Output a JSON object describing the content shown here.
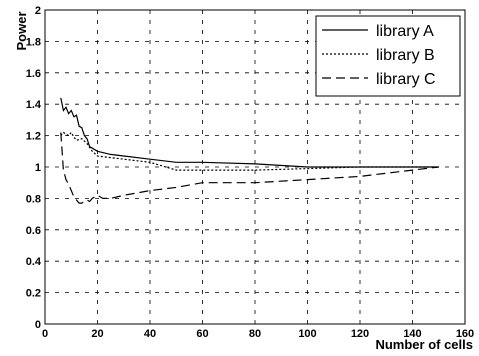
{
  "chart_data": {
    "type": "line",
    "xlabel": "Number of cells",
    "ylabel": "Power",
    "xlim": [
      0,
      160
    ],
    "ylim": [
      0,
      2
    ],
    "xticks": [
      0,
      20,
      40,
      60,
      80,
      100,
      120,
      140,
      160
    ],
    "yticks": [
      0,
      0.2,
      0.4,
      0.6,
      0.8,
      1,
      1.2,
      1.4,
      1.6,
      1.8,
      2
    ],
    "grid": true,
    "legend_position": "top-right",
    "series": [
      {
        "name": "library A",
        "style": "solid",
        "x": [
          6,
          7,
          8,
          9,
          10,
          11,
          12,
          13,
          14,
          15,
          16,
          17,
          18,
          20,
          25,
          30,
          40,
          50,
          60,
          80,
          100,
          120,
          140,
          150
        ],
        "y": [
          1.44,
          1.36,
          1.38,
          1.34,
          1.36,
          1.32,
          1.33,
          1.26,
          1.25,
          1.2,
          1.18,
          1.13,
          1.12,
          1.1,
          1.08,
          1.07,
          1.05,
          1.03,
          1.03,
          1.02,
          1.0,
          1.0,
          1.0,
          1.0
        ]
      },
      {
        "name": "library B",
        "style": "dotted",
        "x": [
          6,
          7,
          8,
          9,
          10,
          11,
          12,
          14,
          16,
          18,
          20,
          25,
          30,
          40,
          50,
          60,
          80,
          100,
          120,
          140,
          150
        ],
        "y": [
          1.2,
          1.22,
          1.21,
          1.2,
          1.22,
          1.19,
          1.17,
          1.18,
          1.15,
          1.1,
          1.07,
          1.06,
          1.05,
          1.03,
          0.98,
          0.98,
          0.98,
          0.99,
          1.0,
          1.0,
          1.0
        ]
      },
      {
        "name": "library C",
        "style": "dashed",
        "x": [
          6,
          7,
          8,
          9,
          10,
          11,
          12,
          13,
          14,
          15,
          16,
          17,
          18,
          20,
          22,
          25,
          30,
          40,
          50,
          60,
          80,
          100,
          120,
          140,
          150
        ],
        "y": [
          1.22,
          0.98,
          0.92,
          0.89,
          0.85,
          0.81,
          0.79,
          0.77,
          0.77,
          0.78,
          0.79,
          0.78,
          0.8,
          0.82,
          0.8,
          0.8,
          0.82,
          0.85,
          0.87,
          0.9,
          0.9,
          0.92,
          0.94,
          0.98,
          1.0
        ]
      }
    ]
  }
}
